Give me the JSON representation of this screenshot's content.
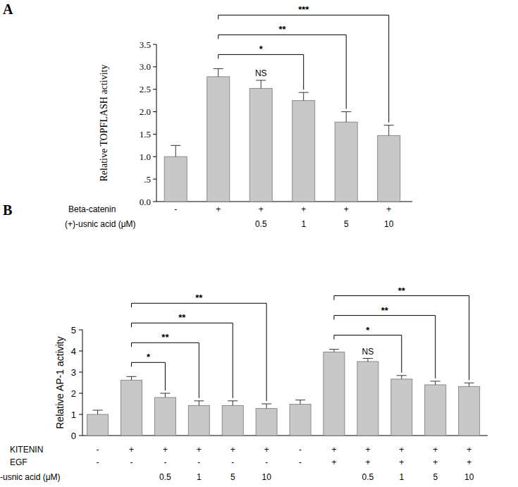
{
  "chart_data": [
    {
      "type": "bar",
      "title": "A",
      "y_label": "Relative TOPFLASH  activity",
      "categories": [
        null,
        null,
        null,
        null,
        null,
        null
      ],
      "values": [
        1.0,
        2.78,
        2.52,
        2.25,
        1.77,
        1.47
      ],
      "errors": [
        0.25,
        0.18,
        0.18,
        0.18,
        0.23,
        0.23
      ],
      "color": "#c8c8c8",
      "ylim": [
        0,
        3.5
      ],
      "yticks": [
        {
          "value": 0,
          "label": "0.0"
        },
        {
          "value": 0.5,
          "label": ".5"
        },
        {
          "value": 1,
          "label": "1.0"
        },
        {
          "value": 1.5,
          "label": "1.5"
        },
        {
          "value": 2,
          "label": "2.0"
        },
        {
          "value": 2.5,
          "label": "2.5"
        },
        {
          "value": 3,
          "label": "3.0"
        },
        {
          "value": 3.5,
          "label": "3.5"
        }
      ],
      "conditions": [
        {
          "label": "Beta-catenin",
          "values": [
            "-",
            "+",
            "+",
            "+",
            "+",
            "+"
          ]
        },
        {
          "label": "(+)-usnic acid (μM)",
          "values": [
            null,
            null,
            "0.5",
            "1",
            "5",
            "10"
          ]
        }
      ],
      "annotations": [
        {
          "bar": 2,
          "label": "NS"
        }
      ],
      "brackets": [
        {
          "from": 1,
          "to": 3,
          "label": "*"
        },
        {
          "from": 1,
          "to": 4,
          "label": "**"
        },
        {
          "from": 1,
          "to": 5,
          "label": "***"
        }
      ]
    },
    {
      "type": "bar",
      "title": "B",
      "y_label": "Relative AP-1  activity",
      "categories": [
        null,
        null,
        null,
        null,
        null,
        null,
        null,
        null,
        null,
        null,
        null,
        null
      ],
      "values": [
        1.0,
        2.62,
        1.8,
        1.42,
        1.42,
        1.28,
        1.48,
        3.95,
        3.5,
        2.67,
        2.4,
        2.32
      ],
      "errors": [
        0.2,
        0.17,
        0.2,
        0.22,
        0.22,
        0.22,
        0.2,
        0.13,
        0.15,
        0.17,
        0.17,
        0.17
      ],
      "color": "#c8c8c8",
      "ylim": [
        0,
        5
      ],
      "yticks": [
        0,
        1,
        2,
        3,
        4,
        5
      ],
      "conditions": [
        {
          "label": "KITENIN",
          "values": [
            "-",
            "+",
            "+",
            "+",
            "+",
            "+",
            "-",
            "+",
            "+",
            "+",
            "+",
            "+"
          ]
        },
        {
          "label": "EGF",
          "values": [
            "-",
            "-",
            "-",
            "-",
            "-",
            "-",
            "-",
            "+",
            "+",
            "+",
            "+",
            "+"
          ]
        },
        {
          "label": "-usnic acid (μM)",
          "values": [
            null,
            null,
            "0.5",
            "1",
            "5",
            "10",
            null,
            null,
            "0.5",
            "1",
            "5",
            "10"
          ]
        }
      ],
      "annotations": [
        {
          "bar": 8,
          "label": "NS"
        }
      ],
      "brackets": [
        {
          "from": 1,
          "to": 2,
          "label": "*"
        },
        {
          "from": 1,
          "to": 3,
          "label": "**"
        },
        {
          "from": 1,
          "to": 4,
          "label": "**"
        },
        {
          "from": 1,
          "to": 5,
          "label": "**"
        },
        {
          "from": 7,
          "to": 9,
          "label": "*"
        },
        {
          "from": 7,
          "to": 10,
          "label": "**"
        },
        {
          "from": 7,
          "to": 11,
          "label": "**"
        }
      ]
    }
  ]
}
